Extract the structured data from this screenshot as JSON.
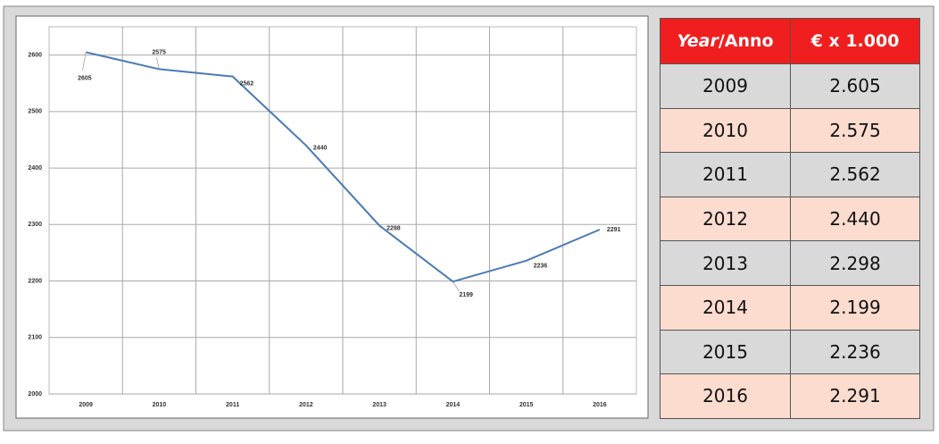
{
  "chart_data": {
    "type": "line",
    "categories": [
      "2009",
      "2010",
      "2011",
      "2012",
      "2013",
      "2014",
      "2015",
      "2016"
    ],
    "series": [
      {
        "color": "#4a7ab5",
        "values": [
          2605,
          2575,
          2562,
          2440,
          2298,
          2199,
          2236,
          2291
        ]
      }
    ],
    "ylim": [
      2000,
      2650
    ],
    "yticks": [
      2000,
      2100,
      2200,
      2300,
      2400,
      2500,
      2600
    ],
    "grid": true,
    "data_labels": true
  },
  "table": {
    "header": {
      "year": "Year",
      "anno": "/Anno",
      "value": "€ x 1.000"
    },
    "rows": [
      [
        "2009",
        "2.605"
      ],
      [
        "2010",
        "2.575"
      ],
      [
        "2011",
        "2.562"
      ],
      [
        "2012",
        "2.440"
      ],
      [
        "2013",
        "2.298"
      ],
      [
        "2014",
        "2.199"
      ],
      [
        "2015",
        "2.236"
      ],
      [
        "2016",
        "2.291"
      ]
    ]
  }
}
